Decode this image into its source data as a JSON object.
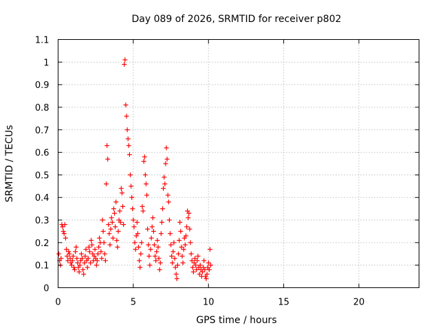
{
  "chart_data": {
    "type": "scatter",
    "title": "Day 089 of 2026, SRMTID for receiver p802",
    "xlabel": "GPS time / hours",
    "ylabel": "SRMTID / TECUs",
    "xlim": [
      0,
      24
    ],
    "ylim": [
      0,
      1.1
    ],
    "xticks": [
      0,
      5,
      10,
      15,
      20
    ],
    "yticks": [
      0,
      0.1,
      0.2,
      0.3,
      0.4,
      0.5,
      0.6,
      0.7,
      0.8,
      0.9,
      1,
      1.1
    ],
    "xtick_labels": [
      "0",
      "5",
      "10",
      "15",
      "20"
    ],
    "ytick_labels": [
      "0",
      "0.1",
      "0.2",
      "0.3",
      "0.4",
      "0.5",
      "0.6",
      "0.7",
      "0.8",
      "0.9",
      "1",
      "1.1"
    ],
    "grid": true,
    "marker": "+",
    "marker_color": "#ff0000",
    "series": [
      {
        "name": "SRMTID",
        "points": [
          [
            0.05,
            0.15
          ],
          [
            0.1,
            0.12
          ],
          [
            0.15,
            0.1
          ],
          [
            0.2,
            0.13
          ],
          [
            0.25,
            0.28
          ],
          [
            0.3,
            0.27
          ],
          [
            0.35,
            0.25
          ],
          [
            0.4,
            0.24
          ],
          [
            0.45,
            0.28
          ],
          [
            0.5,
            0.22
          ],
          [
            0.55,
            0.17
          ],
          [
            0.6,
            0.14
          ],
          [
            0.65,
            0.12
          ],
          [
            0.7,
            0.16
          ],
          [
            0.75,
            0.15
          ],
          [
            0.8,
            0.13
          ],
          [
            0.85,
            0.11
          ],
          [
            0.9,
            0.1
          ],
          [
            0.95,
            0.12
          ],
          [
            1.0,
            0.14
          ],
          [
            1.05,
            0.09
          ],
          [
            1.1,
            0.08
          ],
          [
            1.15,
            0.16
          ],
          [
            1.2,
            0.18
          ],
          [
            1.25,
            0.13
          ],
          [
            1.3,
            0.11
          ],
          [
            1.35,
            0.09
          ],
          [
            1.4,
            0.07
          ],
          [
            1.45,
            0.1
          ],
          [
            1.5,
            0.12
          ],
          [
            1.55,
            0.15
          ],
          [
            1.6,
            0.13
          ],
          [
            1.65,
            0.08
          ],
          [
            1.7,
            0.06
          ],
          [
            1.75,
            0.11
          ],
          [
            1.8,
            0.14
          ],
          [
            1.85,
            0.17
          ],
          [
            1.9,
            0.12
          ],
          [
            1.95,
            0.09
          ],
          [
            2.0,
            0.13
          ],
          [
            2.05,
            0.18
          ],
          [
            2.1,
            0.16
          ],
          [
            2.15,
            0.11
          ],
          [
            2.2,
            0.21
          ],
          [
            2.25,
            0.19
          ],
          [
            2.3,
            0.15
          ],
          [
            2.35,
            0.12
          ],
          [
            2.4,
            0.14
          ],
          [
            2.45,
            0.17
          ],
          [
            2.5,
            0.13
          ],
          [
            2.55,
            0.1
          ],
          [
            2.6,
            0.12
          ],
          [
            2.65,
            0.15
          ],
          [
            2.7,
            0.18
          ],
          [
            2.75,
            0.22
          ],
          [
            2.8,
            0.2
          ],
          [
            2.85,
            0.16
          ],
          [
            2.9,
            0.13
          ],
          [
            2.95,
            0.3
          ],
          [
            3.0,
            0.25
          ],
          [
            3.05,
            0.2
          ],
          [
            3.1,
            0.15
          ],
          [
            3.15,
            0.12
          ],
          [
            3.2,
            0.46
          ],
          [
            3.25,
            0.63
          ],
          [
            3.3,
            0.57
          ],
          [
            3.35,
            0.28
          ],
          [
            3.4,
            0.24
          ],
          [
            3.45,
            0.19
          ],
          [
            3.5,
            0.26
          ],
          [
            3.55,
            0.31
          ],
          [
            3.6,
            0.29
          ],
          [
            3.65,
            0.22
          ],
          [
            3.7,
            0.35
          ],
          [
            3.75,
            0.33
          ],
          [
            3.8,
            0.27
          ],
          [
            3.85,
            0.38
          ],
          [
            3.9,
            0.21
          ],
          [
            3.95,
            0.18
          ],
          [
            4.0,
            0.25
          ],
          [
            4.05,
            0.3
          ],
          [
            4.1,
            0.34
          ],
          [
            4.15,
            0.29
          ],
          [
            4.2,
            0.44
          ],
          [
            4.25,
            0.42
          ],
          [
            4.3,
            0.36
          ],
          [
            4.35,
            0.28
          ],
          [
            4.4,
            0.99
          ],
          [
            4.45,
            1.01
          ],
          [
            4.5,
            0.81
          ],
          [
            4.55,
            0.76
          ],
          [
            4.6,
            0.7
          ],
          [
            4.65,
            0.66
          ],
          [
            4.7,
            0.63
          ],
          [
            4.75,
            0.59
          ],
          [
            4.8,
            0.5
          ],
          [
            4.85,
            0.45
          ],
          [
            4.9,
            0.4
          ],
          [
            4.95,
            0.35
          ],
          [
            5.0,
            0.3
          ],
          [
            5.05,
            0.27
          ],
          [
            5.1,
            0.2
          ],
          [
            5.15,
            0.17
          ],
          [
            5.2,
            0.23
          ],
          [
            5.25,
            0.29
          ],
          [
            5.3,
            0.24
          ],
          [
            5.35,
            0.18
          ],
          [
            5.4,
            0.12
          ],
          [
            5.45,
            0.09
          ],
          [
            5.5,
            0.15
          ],
          [
            5.55,
            0.2
          ],
          [
            5.6,
            0.36
          ],
          [
            5.65,
            0.34
          ],
          [
            5.7,
            0.56
          ],
          [
            5.75,
            0.58
          ],
          [
            5.8,
            0.5
          ],
          [
            5.85,
            0.46
          ],
          [
            5.9,
            0.41
          ],
          [
            5.95,
            0.26
          ],
          [
            6.0,
            0.19
          ],
          [
            6.05,
            0.14
          ],
          [
            6.1,
            0.1
          ],
          [
            6.15,
            0.17
          ],
          [
            6.2,
            0.22
          ],
          [
            6.25,
            0.27
          ],
          [
            6.3,
            0.31
          ],
          [
            6.35,
            0.25
          ],
          [
            6.4,
            0.19
          ],
          [
            6.45,
            0.14
          ],
          [
            6.5,
            0.12
          ],
          [
            6.55,
            0.16
          ],
          [
            6.6,
            0.21
          ],
          [
            6.65,
            0.18
          ],
          [
            6.7,
            0.13
          ],
          [
            6.75,
            0.08
          ],
          [
            6.8,
            0.11
          ],
          [
            6.85,
            0.24
          ],
          [
            6.9,
            0.29
          ],
          [
            6.95,
            0.35
          ],
          [
            7.0,
            0.44
          ],
          [
            7.05,
            0.49
          ],
          [
            7.1,
            0.46
          ],
          [
            7.15,
            0.55
          ],
          [
            7.2,
            0.62
          ],
          [
            7.25,
            0.57
          ],
          [
            7.3,
            0.41
          ],
          [
            7.35,
            0.38
          ],
          [
            7.4,
            0.3
          ],
          [
            7.45,
            0.24
          ],
          [
            7.5,
            0.19
          ],
          [
            7.55,
            0.14
          ],
          [
            7.6,
            0.11
          ],
          [
            7.65,
            0.16
          ],
          [
            7.7,
            0.2
          ],
          [
            7.75,
            0.13
          ],
          [
            7.8,
            0.09
          ],
          [
            7.85,
            0.06
          ],
          [
            7.9,
            0.04
          ],
          [
            7.95,
            0.1
          ],
          [
            8.0,
            0.15
          ],
          [
            8.05,
            0.21
          ],
          [
            8.1,
            0.29
          ],
          [
            8.15,
            0.25
          ],
          [
            8.2,
            0.18
          ],
          [
            8.25,
            0.14
          ],
          [
            8.3,
            0.11
          ],
          [
            8.35,
            0.17
          ],
          [
            8.4,
            0.22
          ],
          [
            8.45,
            0.19
          ],
          [
            8.5,
            0.23
          ],
          [
            8.55,
            0.27
          ],
          [
            8.6,
            0.34
          ],
          [
            8.65,
            0.31
          ],
          [
            8.7,
            0.33
          ],
          [
            8.75,
            0.26
          ],
          [
            8.8,
            0.2
          ],
          [
            8.85,
            0.15
          ],
          [
            8.9,
            0.12
          ],
          [
            8.95,
            0.09
          ],
          [
            9.0,
            0.07
          ],
          [
            9.05,
            0.11
          ],
          [
            9.1,
            0.13
          ],
          [
            9.15,
            0.1
          ],
          [
            9.2,
            0.08
          ],
          [
            9.25,
            0.12
          ],
          [
            9.3,
            0.14
          ],
          [
            9.35,
            0.09
          ],
          [
            9.4,
            0.06
          ],
          [
            9.45,
            0.1
          ],
          [
            9.5,
            0.08
          ],
          [
            9.55,
            0.05
          ],
          [
            9.6,
            0.07
          ],
          [
            9.65,
            0.09
          ],
          [
            9.7,
            0.12
          ],
          [
            9.75,
            0.08
          ],
          [
            9.8,
            0.05
          ],
          [
            9.85,
            0.04
          ],
          [
            9.9,
            0.06
          ],
          [
            9.95,
            0.09
          ],
          [
            10.0,
            0.11
          ],
          [
            10.05,
            0.08
          ],
          [
            10.1,
            0.17
          ],
          [
            10.15,
            0.1
          ]
        ]
      }
    ]
  }
}
